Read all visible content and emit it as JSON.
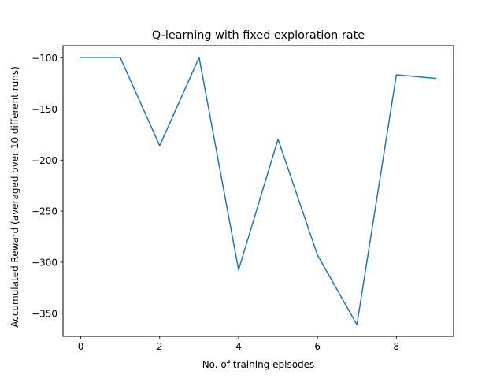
{
  "chart_data": {
    "type": "line",
    "title": "Q-learning with fixed exploration rate",
    "xlabel": "No. of training episodes",
    "ylabel": "Accumulated Reward (averaged over 10 different runs)",
    "x": [
      0,
      1,
      2,
      3,
      4,
      5,
      6,
      7,
      8,
      9
    ],
    "series": [
      {
        "values": [
          -99.5,
          -99.5,
          -186,
          -99.5,
          -307.5,
          -179.5,
          -293,
          -361,
          -116.5,
          -120
        ],
        "color": "#1f77b4"
      }
    ],
    "xlim": [
      -0.45,
      9.45
    ],
    "ylim": [
      -372.5,
      -88
    ],
    "xticks": [
      0,
      2,
      4,
      6,
      8
    ],
    "yticks": [
      -100,
      -150,
      -200,
      -250,
      -300,
      -350
    ],
    "xtick_labels": [
      "0",
      "2",
      "4",
      "6",
      "8"
    ],
    "ytick_labels": [
      "−100",
      "−150",
      "−200",
      "−250",
      "−300",
      "−350"
    ],
    "grid": false,
    "legend": "none"
  }
}
